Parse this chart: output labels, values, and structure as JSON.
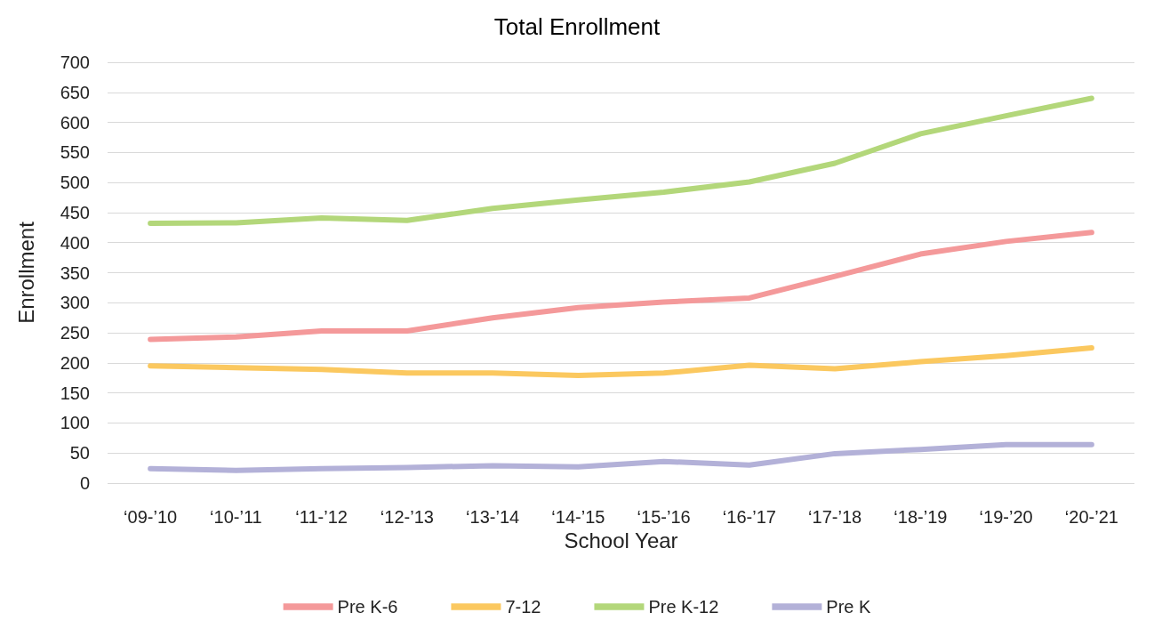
{
  "chart_data": {
    "type": "line",
    "title": "Total Enrollment",
    "xlabel": "School Year",
    "ylabel": "Enrollment",
    "categories": [
      "‘09-’10",
      "‘10-’11",
      "‘11-’12",
      "‘12-’13",
      "‘13-’14",
      "‘14-’15",
      "‘15-’16",
      "‘16-’17",
      "‘17-’18",
      "‘18-’19",
      "‘19-’20",
      "‘20-’21"
    ],
    "series": [
      {
        "name": "Pre K-6",
        "color": "#f4999a",
        "values": [
          239,
          243,
          253,
          253,
          275,
          292,
          301,
          308,
          344,
          381,
          402,
          417
        ]
      },
      {
        "name": "7-12",
        "color": "#fbc85f",
        "values": [
          195,
          192,
          189,
          183,
          183,
          179,
          183,
          196,
          190,
          202,
          212,
          225
        ]
      },
      {
        "name": "Pre K-12",
        "color": "#b3d77a",
        "values": [
          432,
          433,
          441,
          437,
          457,
          471,
          484,
          501,
          532,
          581,
          611,
          640
        ]
      },
      {
        "name": "Pre K",
        "color": "#b3b1d8",
        "values": [
          24,
          21,
          24,
          26,
          29,
          27,
          36,
          30,
          49,
          56,
          64,
          64
        ]
      }
    ],
    "ylim": [
      0,
      700
    ],
    "yticks": [
      0,
      50,
      100,
      150,
      200,
      250,
      300,
      350,
      400,
      450,
      500,
      550,
      600,
      650,
      700
    ],
    "grid": "y",
    "legend": "bottom",
    "marker": "none",
    "line_style": "solid"
  }
}
